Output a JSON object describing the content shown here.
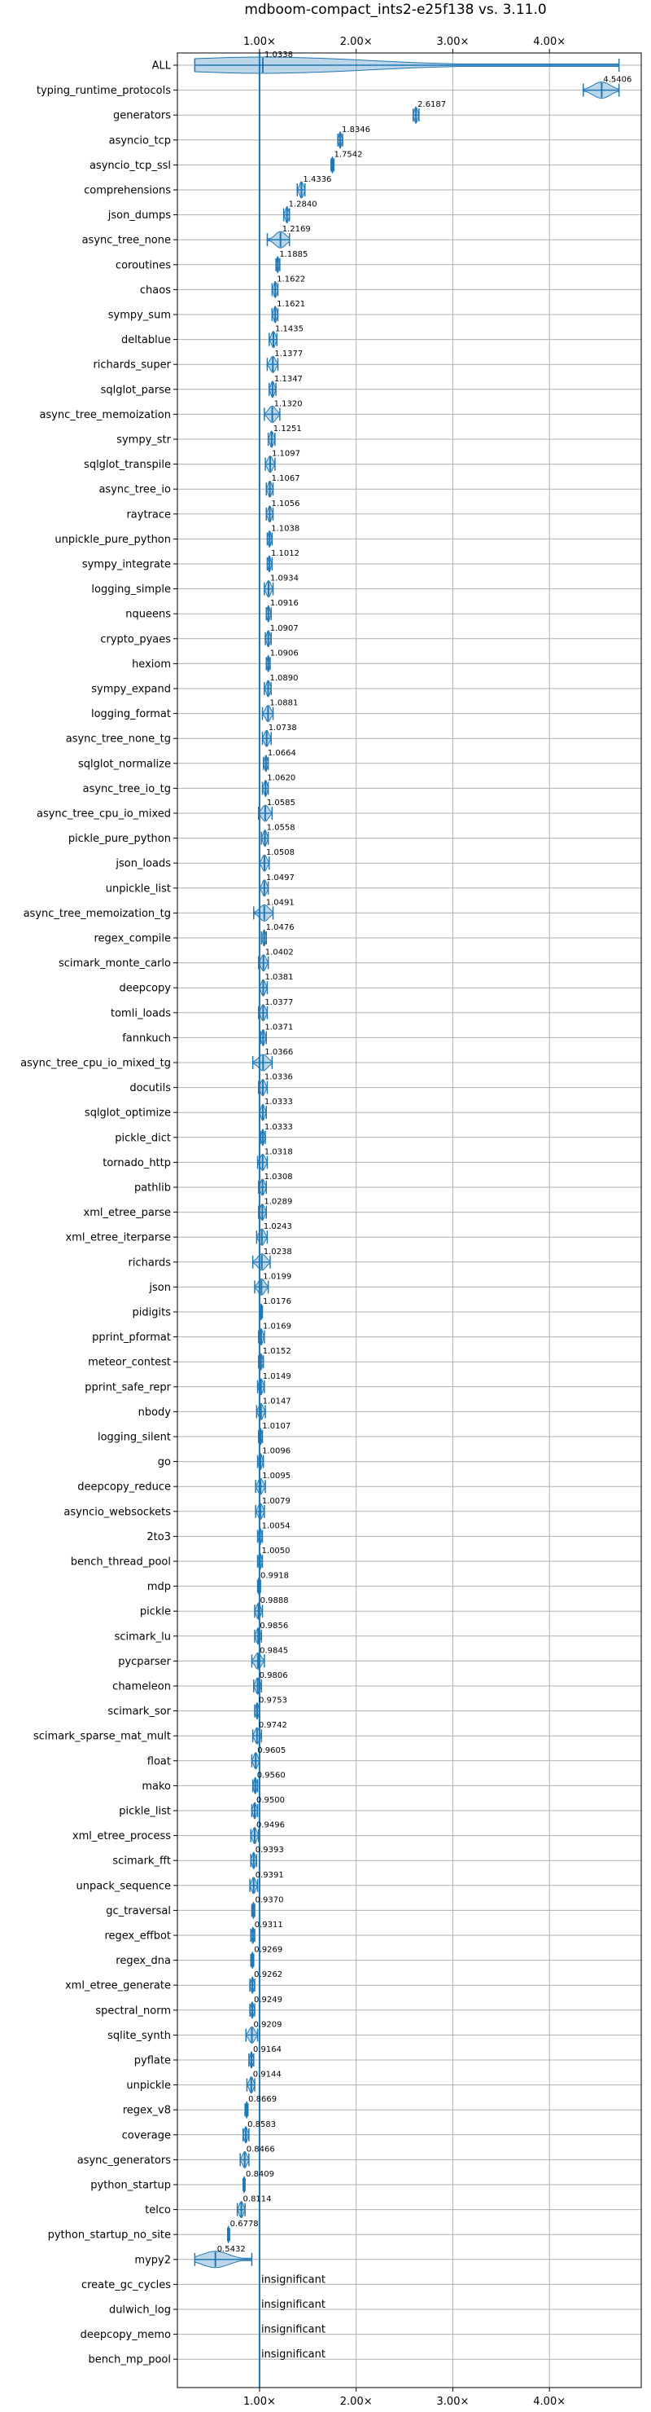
{
  "chart_data": {
    "type": "violin",
    "title": "mdboom-compact_ints2-e25f138 vs. 3.11.0",
    "xlim": [
      0.15,
      4.95
    ],
    "reference_value": 1.0,
    "x_ticks": [
      1.0,
      2.0,
      3.0,
      4.0
    ],
    "x_tick_labels": [
      "1.00×",
      "2.00×",
      "3.00×",
      "4.00×"
    ],
    "grid": true,
    "insignificant_label": "insignificant",
    "benchmarks": [
      {
        "name": "ALL",
        "label": "1.0338",
        "median": 1.0338,
        "min": 0.33,
        "max": 4.72
      },
      {
        "name": "typing_runtime_protocols",
        "label": "4.5406",
        "median": 4.5406,
        "min": 4.35,
        "max": 4.72
      },
      {
        "name": "generators",
        "label": "2.6187",
        "median": 2.6187,
        "min": 2.59,
        "max": 2.65
      },
      {
        "name": "asyncio_tcp",
        "label": "1.8346",
        "median": 1.8346,
        "min": 1.81,
        "max": 1.86
      },
      {
        "name": "asyncio_tcp_ssl",
        "label": "1.7542",
        "median": 1.7542,
        "min": 1.74,
        "max": 1.77
      },
      {
        "name": "comprehensions",
        "label": "1.4336",
        "median": 1.4336,
        "min": 1.39,
        "max": 1.47
      },
      {
        "name": "json_dumps",
        "label": "1.2840",
        "median": 1.284,
        "min": 1.25,
        "max": 1.31
      },
      {
        "name": "async_tree_none",
        "label": "1.2169",
        "median": 1.2169,
        "min": 1.08,
        "max": 1.31
      },
      {
        "name": "coroutines",
        "label": "1.1885",
        "median": 1.1885,
        "min": 1.17,
        "max": 1.21
      },
      {
        "name": "chaos",
        "label": "1.1622",
        "median": 1.1622,
        "min": 1.13,
        "max": 1.19
      },
      {
        "name": "sympy_sum",
        "label": "1.1621",
        "median": 1.1621,
        "min": 1.13,
        "max": 1.19
      },
      {
        "name": "deltablue",
        "label": "1.1435",
        "median": 1.1435,
        "min": 1.1,
        "max": 1.18
      },
      {
        "name": "richards_super",
        "label": "1.1377",
        "median": 1.1377,
        "min": 1.08,
        "max": 1.19
      },
      {
        "name": "sqlglot_parse",
        "label": "1.1347",
        "median": 1.1347,
        "min": 1.1,
        "max": 1.17
      },
      {
        "name": "async_tree_memoization",
        "label": "1.1320",
        "median": 1.132,
        "min": 1.05,
        "max": 1.21
      },
      {
        "name": "sympy_str",
        "label": "1.1251",
        "median": 1.1251,
        "min": 1.09,
        "max": 1.16
      },
      {
        "name": "sqlglot_transpile",
        "label": "1.1097",
        "median": 1.1097,
        "min": 1.06,
        "max": 1.16
      },
      {
        "name": "async_tree_io",
        "label": "1.1067",
        "median": 1.1067,
        "min": 1.07,
        "max": 1.14
      },
      {
        "name": "raytrace",
        "label": "1.1056",
        "median": 1.1056,
        "min": 1.07,
        "max": 1.14
      },
      {
        "name": "unpickle_pure_python",
        "label": "1.1038",
        "median": 1.1038,
        "min": 1.08,
        "max": 1.13
      },
      {
        "name": "sympy_integrate",
        "label": "1.1012",
        "median": 1.1012,
        "min": 1.08,
        "max": 1.13
      },
      {
        "name": "logging_simple",
        "label": "1.0934",
        "median": 1.0934,
        "min": 1.05,
        "max": 1.14
      },
      {
        "name": "nqueens",
        "label": "1.0916",
        "median": 1.0916,
        "min": 1.07,
        "max": 1.12
      },
      {
        "name": "crypto_pyaes",
        "label": "1.0907",
        "median": 1.0907,
        "min": 1.06,
        "max": 1.12
      },
      {
        "name": "hexiom",
        "label": "1.0906",
        "median": 1.0906,
        "min": 1.07,
        "max": 1.11
      },
      {
        "name": "sympy_expand",
        "label": "1.0890",
        "median": 1.089,
        "min": 1.05,
        "max": 1.12
      },
      {
        "name": "logging_format",
        "label": "1.0881",
        "median": 1.0881,
        "min": 1.03,
        "max": 1.14
      },
      {
        "name": "async_tree_none_tg",
        "label": "1.0738",
        "median": 1.0738,
        "min": 1.03,
        "max": 1.12
      },
      {
        "name": "sqlglot_normalize",
        "label": "1.0664",
        "median": 1.0664,
        "min": 1.04,
        "max": 1.09
      },
      {
        "name": "async_tree_io_tg",
        "label": "1.0620",
        "median": 1.062,
        "min": 1.03,
        "max": 1.09
      },
      {
        "name": "async_tree_cpu_io_mixed",
        "label": "1.0585",
        "median": 1.0585,
        "min": 0.99,
        "max": 1.13
      },
      {
        "name": "pickle_pure_python",
        "label": "1.0558",
        "median": 1.0558,
        "min": 1.02,
        "max": 1.09
      },
      {
        "name": "json_loads",
        "label": "1.0508",
        "median": 1.0508,
        "min": 1.0,
        "max": 1.1
      },
      {
        "name": "unpickle_list",
        "label": "1.0497",
        "median": 1.0497,
        "min": 1.0,
        "max": 1.09
      },
      {
        "name": "async_tree_memoization_tg",
        "label": "1.0491",
        "median": 1.0491,
        "min": 0.94,
        "max": 1.14
      },
      {
        "name": "regex_compile",
        "label": "1.0476",
        "median": 1.0476,
        "min": 1.02,
        "max": 1.07
      },
      {
        "name": "scimark_monte_carlo",
        "label": "1.0402",
        "median": 1.0402,
        "min": 0.99,
        "max": 1.09
      },
      {
        "name": "deepcopy",
        "label": "1.0381",
        "median": 1.0381,
        "min": 1.0,
        "max": 1.08
      },
      {
        "name": "tomli_loads",
        "label": "1.0377",
        "median": 1.0377,
        "min": 0.99,
        "max": 1.08
      },
      {
        "name": "fannkuch",
        "label": "1.0371",
        "median": 1.0371,
        "min": 1.01,
        "max": 1.07
      },
      {
        "name": "async_tree_cpu_io_mixed_tg",
        "label": "1.0366",
        "median": 1.0366,
        "min": 0.93,
        "max": 1.13
      },
      {
        "name": "docutils",
        "label": "1.0336",
        "median": 1.0336,
        "min": 0.99,
        "max": 1.08
      },
      {
        "name": "sqlglot_optimize",
        "label": "1.0333",
        "median": 1.0333,
        "min": 1.0,
        "max": 1.07
      },
      {
        "name": "pickle_dict",
        "label": "1.0333",
        "median": 1.0333,
        "min": 1.01,
        "max": 1.06
      },
      {
        "name": "tornado_http",
        "label": "1.0318",
        "median": 1.0318,
        "min": 0.98,
        "max": 1.08
      },
      {
        "name": "pathlib",
        "label": "1.0308",
        "median": 1.0308,
        "min": 0.99,
        "max": 1.07
      },
      {
        "name": "xml_etree_parse",
        "label": "1.0289",
        "median": 1.0289,
        "min": 0.99,
        "max": 1.07
      },
      {
        "name": "xml_etree_iterparse",
        "label": "1.0243",
        "median": 1.0243,
        "min": 0.97,
        "max": 1.08
      },
      {
        "name": "richards",
        "label": "1.0238",
        "median": 1.0238,
        "min": 0.93,
        "max": 1.11
      },
      {
        "name": "json",
        "label": "1.0199",
        "median": 1.0199,
        "min": 0.95,
        "max": 1.09
      },
      {
        "name": "pidigits",
        "label": "1.0176",
        "median": 1.0176,
        "min": 1.0,
        "max": 1.03
      },
      {
        "name": "pprint_pformat",
        "label": "1.0169",
        "median": 1.0169,
        "min": 0.99,
        "max": 1.05
      },
      {
        "name": "meteor_contest",
        "label": "1.0152",
        "median": 1.0152,
        "min": 0.99,
        "max": 1.04
      },
      {
        "name": "pprint_safe_repr",
        "label": "1.0149",
        "median": 1.0149,
        "min": 0.98,
        "max": 1.05
      },
      {
        "name": "nbody",
        "label": "1.0147",
        "median": 1.0147,
        "min": 0.97,
        "max": 1.06
      },
      {
        "name": "logging_silent",
        "label": "1.0107",
        "median": 1.0107,
        "min": 0.99,
        "max": 1.03
      },
      {
        "name": "go",
        "label": "1.0096",
        "median": 1.0096,
        "min": 0.98,
        "max": 1.04
      },
      {
        "name": "deepcopy_reduce",
        "label": "1.0095",
        "median": 1.0095,
        "min": 0.96,
        "max": 1.06
      },
      {
        "name": "asyncio_websockets",
        "label": "1.0079",
        "median": 1.0079,
        "min": 0.96,
        "max": 1.05
      },
      {
        "name": "2to3",
        "label": "1.0054",
        "median": 1.0054,
        "min": 0.98,
        "max": 1.03
      },
      {
        "name": "bench_thread_pool",
        "label": "1.0050",
        "median": 1.005,
        "min": 0.98,
        "max": 1.03
      },
      {
        "name": "mdp",
        "label": "0.9918",
        "median": 0.9918,
        "min": 0.98,
        "max": 1.01
      },
      {
        "name": "pickle",
        "label": "0.9888",
        "median": 0.9888,
        "min": 0.95,
        "max": 1.03
      },
      {
        "name": "scimark_lu",
        "label": "0.9856",
        "median": 0.9856,
        "min": 0.95,
        "max": 1.02
      },
      {
        "name": "pycparser",
        "label": "0.9845",
        "median": 0.9845,
        "min": 0.92,
        "max": 1.05
      },
      {
        "name": "chameleon",
        "label": "0.9806",
        "median": 0.9806,
        "min": 0.94,
        "max": 1.02
      },
      {
        "name": "scimark_sor",
        "label": "0.9753",
        "median": 0.9753,
        "min": 0.95,
        "max": 1.0
      },
      {
        "name": "scimark_sparse_mat_mult",
        "label": "0.9742",
        "median": 0.9742,
        "min": 0.93,
        "max": 1.02
      },
      {
        "name": "float",
        "label": "0.9605",
        "median": 0.9605,
        "min": 0.92,
        "max": 1.0
      },
      {
        "name": "mako",
        "label": "0.9560",
        "median": 0.956,
        "min": 0.93,
        "max": 0.98
      },
      {
        "name": "pickle_list",
        "label": "0.9500",
        "median": 0.95,
        "min": 0.92,
        "max": 0.98
      },
      {
        "name": "xml_etree_process",
        "label": "0.9496",
        "median": 0.9496,
        "min": 0.91,
        "max": 0.99
      },
      {
        "name": "scimark_fft",
        "label": "0.9393",
        "median": 0.9393,
        "min": 0.91,
        "max": 0.97
      },
      {
        "name": "unpack_sequence",
        "label": "0.9391",
        "median": 0.9391,
        "min": 0.9,
        "max": 0.98
      },
      {
        "name": "gc_traversal",
        "label": "0.9370",
        "median": 0.937,
        "min": 0.92,
        "max": 0.95
      },
      {
        "name": "regex_effbot",
        "label": "0.9311",
        "median": 0.9311,
        "min": 0.91,
        "max": 0.95
      },
      {
        "name": "regex_dna",
        "label": "0.9269",
        "median": 0.9269,
        "min": 0.91,
        "max": 0.94
      },
      {
        "name": "xml_etree_generate",
        "label": "0.9262",
        "median": 0.9262,
        "min": 0.9,
        "max": 0.95
      },
      {
        "name": "spectral_norm",
        "label": "0.9249",
        "median": 0.9249,
        "min": 0.9,
        "max": 0.95
      },
      {
        "name": "sqlite_synth",
        "label": "0.9209",
        "median": 0.9209,
        "min": 0.86,
        "max": 0.98
      },
      {
        "name": "pyflate",
        "label": "0.9164",
        "median": 0.9164,
        "min": 0.89,
        "max": 0.94
      },
      {
        "name": "unpickle",
        "label": "0.9144",
        "median": 0.9144,
        "min": 0.87,
        "max": 0.95
      },
      {
        "name": "regex_v8",
        "label": "0.8669",
        "median": 0.8669,
        "min": 0.85,
        "max": 0.88
      },
      {
        "name": "coverage",
        "label": "0.8583",
        "median": 0.8583,
        "min": 0.83,
        "max": 0.89
      },
      {
        "name": "async_generators",
        "label": "0.8466",
        "median": 0.8466,
        "min": 0.8,
        "max": 0.89
      },
      {
        "name": "python_startup",
        "label": "0.8409",
        "median": 0.8409,
        "min": 0.83,
        "max": 0.85
      },
      {
        "name": "telco",
        "label": "0.8114",
        "median": 0.8114,
        "min": 0.77,
        "max": 0.85
      },
      {
        "name": "python_startup_no_site",
        "label": "0.6778",
        "median": 0.6778,
        "min": 0.67,
        "max": 0.69
      },
      {
        "name": "mypy2",
        "label": "0.5432",
        "median": 0.5432,
        "min": 0.33,
        "max": 0.92
      },
      {
        "name": "create_gc_cycles",
        "label": "",
        "median": null,
        "insignificant": true
      },
      {
        "name": "dulwich_log",
        "label": "",
        "median": null,
        "insignificant": true
      },
      {
        "name": "deepcopy_memo",
        "label": "",
        "median": null,
        "insignificant": true
      },
      {
        "name": "bench_mp_pool",
        "label": "",
        "median": null,
        "insignificant": true
      }
    ]
  }
}
